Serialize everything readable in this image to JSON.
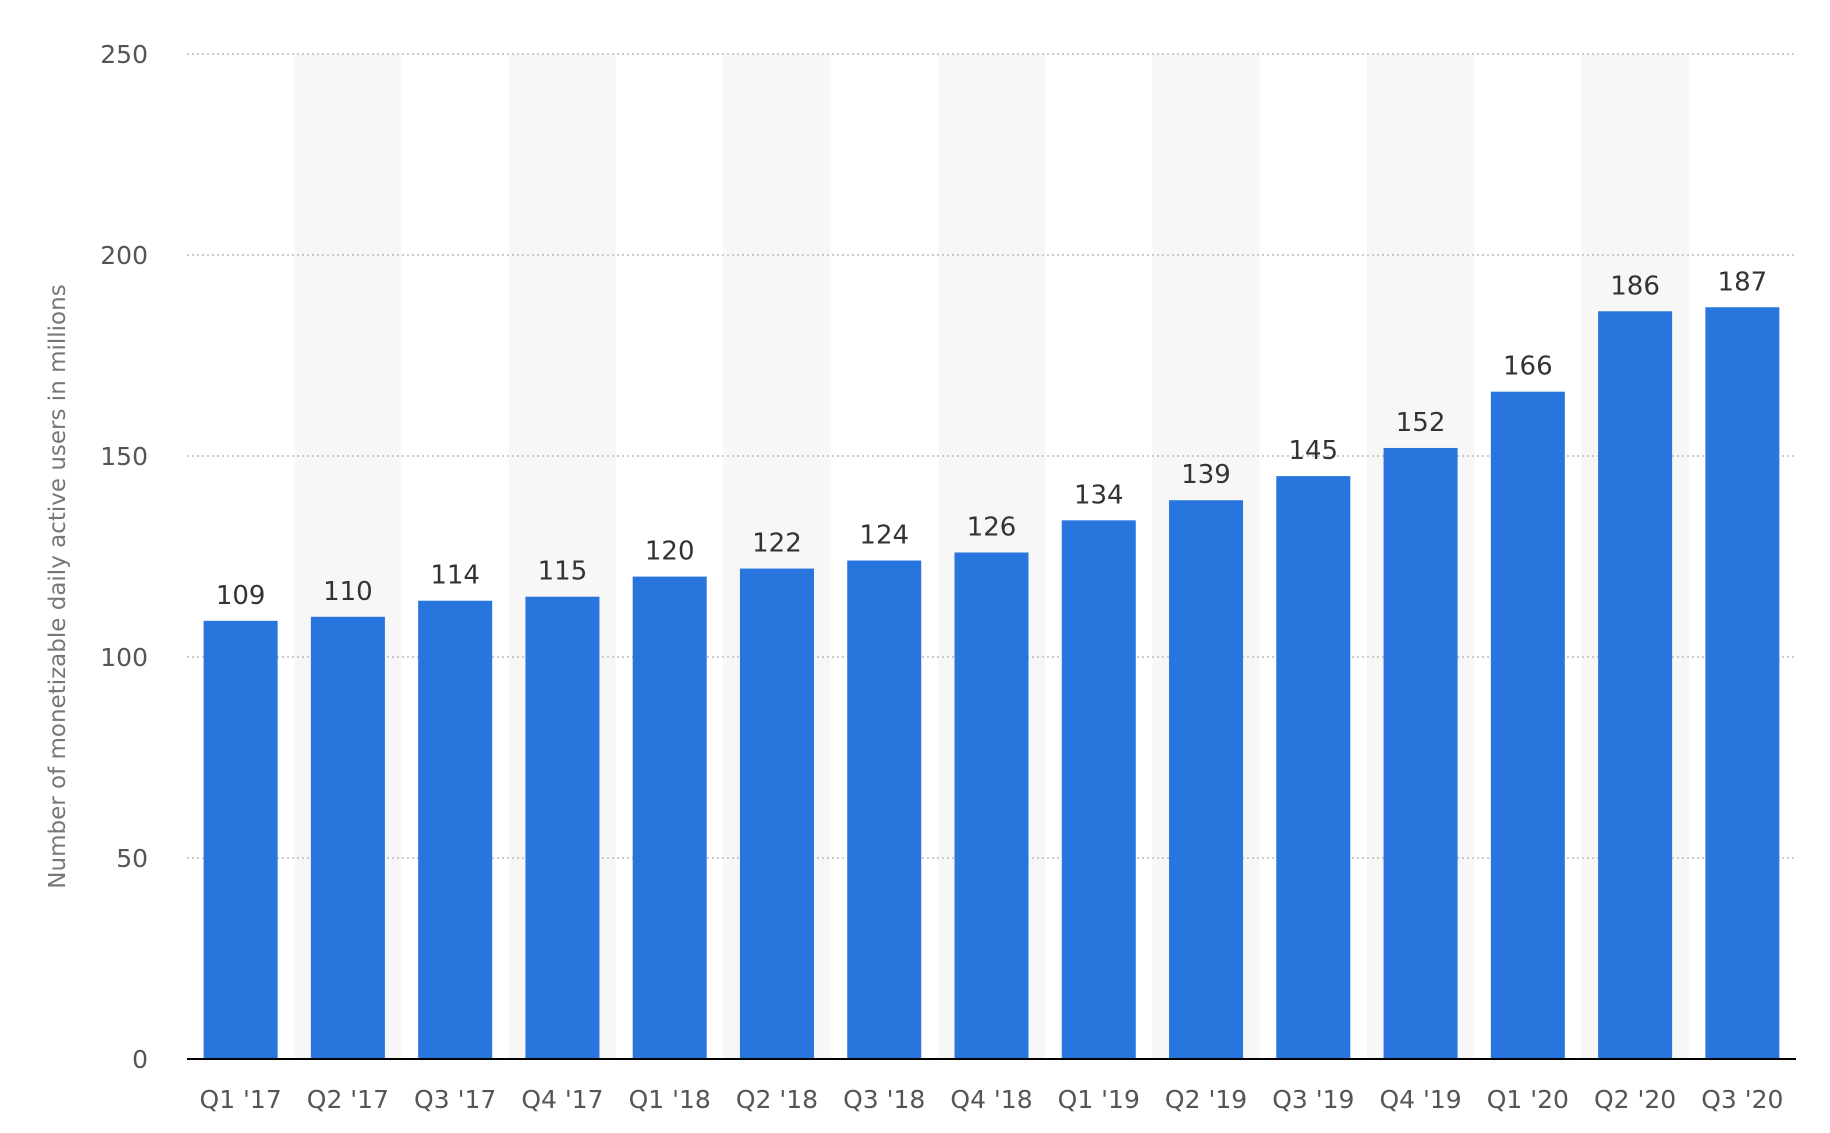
{
  "chart_data": {
    "type": "bar",
    "categories": [
      "Q1 '17",
      "Q2 '17",
      "Q3 '17",
      "Q4 '17",
      "Q1 '18",
      "Q2 '18",
      "Q3 '18",
      "Q4 '18",
      "Q1 '19",
      "Q2 '19",
      "Q3 '19",
      "Q4 '19",
      "Q1 '20",
      "Q2 '20",
      "Q3 '20"
    ],
    "values": [
      109,
      110,
      114,
      115,
      120,
      122,
      124,
      126,
      134,
      139,
      145,
      152,
      166,
      186,
      187
    ],
    "title": "",
    "xlabel": "",
    "ylabel": "Number of monetizable daily active users in millions",
    "ylim": [
      0,
      250
    ],
    "yticks": [
      0,
      50,
      100,
      150,
      200,
      250
    ],
    "grid": true,
    "data_labels": true,
    "bar_color": "#2876dd",
    "band_color": "#f7f7f7",
    "grid_color": "#bbbbbb",
    "axis_color": "#000000"
  }
}
